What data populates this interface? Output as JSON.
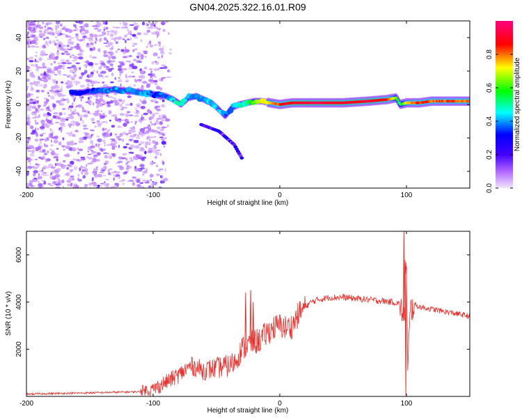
{
  "title": "GN04.2025.322.16.01.R09",
  "chart_data": [
    {
      "type": "heatmap",
      "name": "spectrogram",
      "xlabel": "Height of straight line (km)",
      "ylabel": "Frequency (Hz)",
      "xlim": [
        -200,
        150
      ],
      "ylim": [
        -50,
        50
      ],
      "x_ticks": [
        -200,
        -100,
        0,
        100
      ],
      "y_ticks": [
        -40,
        -20,
        0,
        20,
        40
      ],
      "colorbar": {
        "label": "Normalized spectral amplitude",
        "range": [
          0,
          1
        ],
        "ticks": [
          "0.0",
          "0.2",
          "0.4",
          "0.6",
          "0.8"
        ],
        "colors": [
          "#f2e6ff",
          "#8800ff",
          "#0000ff",
          "#00ffff",
          "#00ff00",
          "#ffff00",
          "#ff0000",
          "#ff0080"
        ]
      },
      "ridge": {
        "x": [
          -160,
          -145,
          -130,
          -118,
          -108,
          -98,
          -90,
          -84,
          -78,
          -72,
          -66,
          -60,
          -54,
          -48,
          -43,
          -38,
          -32,
          -26,
          -20,
          -14,
          -8,
          0,
          10,
          30,
          50,
          70,
          85,
          92,
          95,
          100,
          110,
          120,
          135,
          150
        ],
        "freq": [
          7,
          8,
          9,
          8,
          7,
          6,
          5,
          3,
          0,
          4,
          5,
          3,
          1,
          -3,
          -7,
          -2,
          0,
          1,
          2,
          2,
          1,
          0,
          1,
          1,
          1,
          2,
          3,
          4,
          0,
          1,
          1,
          2,
          2,
          2
        ],
        "amplitude": [
          0.3,
          0.35,
          0.4,
          0.38,
          0.42,
          0.35,
          0.38,
          0.45,
          0.5,
          0.4,
          0.35,
          0.42,
          0.4,
          0.45,
          0.35,
          0.4,
          0.45,
          0.5,
          0.6,
          0.7,
          0.75,
          0.85,
          0.9,
          0.92,
          0.9,
          0.92,
          0.88,
          0.6,
          0.5,
          0.75,
          0.85,
          0.8,
          0.82,
          0.8
        ]
      },
      "secondary_branch": {
        "x": [
          -62,
          -55,
          -48,
          -42,
          -36,
          -30
        ],
        "freq": [
          -12,
          -14,
          -16,
          -20,
          -24,
          -32
        ]
      }
    },
    {
      "type": "line",
      "name": "snr",
      "xlabel": "Height of straight line (km)",
      "ylabel": "SNR (10 * v/v)",
      "xlim": [
        -200,
        150
      ],
      "ylim": [
        0,
        7000
      ],
      "x_ticks": [
        -200,
        -100,
        0,
        100
      ],
      "y_ticks": [
        2000,
        4000,
        6000
      ],
      "color": "#e8302c",
      "series": [
        {
          "name": "SNR",
          "x": [
            -200,
            -150,
            -110,
            -100,
            -90,
            -80,
            -70,
            -60,
            -50,
            -40,
            -35,
            -30,
            -25,
            -20,
            -15,
            -10,
            -5,
            0,
            5,
            10,
            15,
            20,
            25,
            30,
            40,
            50,
            60,
            70,
            80,
            90,
            95,
            98,
            99,
            100,
            101,
            103,
            106,
            110,
            120,
            130,
            140,
            150
          ],
          "y": [
            100,
            150,
            200,
            300,
            600,
            900,
            1300,
            1100,
            1200,
            1300,
            1500,
            2000,
            2200,
            2300,
            2400,
            2700,
            2900,
            3000,
            2900,
            3000,
            3500,
            3800,
            4000,
            4100,
            4200,
            4200,
            4150,
            4100,
            4050,
            4000,
            3900,
            3200,
            5800,
            5200,
            1000,
            3600,
            3900,
            3800,
            3700,
            3600,
            3500,
            3400
          ]
        }
      ],
      "spikes": [
        {
          "x": -27,
          "peak": 4400
        },
        {
          "x": -23,
          "peak": 4500
        },
        {
          "x": -21,
          "peak": 4000
        },
        {
          "x": 98,
          "peak": 7000
        },
        {
          "x": 99.5,
          "trough": 50
        }
      ]
    }
  ]
}
